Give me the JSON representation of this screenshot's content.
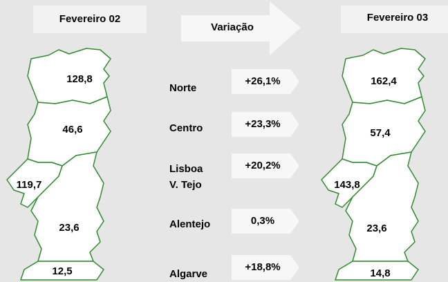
{
  "left_map": {
    "title": "Fevereiro 02",
    "values": [
      "128,8",
      "46,6",
      "119,7",
      "23,6",
      "12,5"
    ]
  },
  "center": {
    "title": "Variação",
    "rows": [
      {
        "region": [
          "Norte"
        ],
        "change": "+26,1%"
      },
      {
        "region": [
          "Centro"
        ],
        "change": "+23,3%"
      },
      {
        "region": [
          "Lisboa",
          "V. Tejo"
        ],
        "change": "+20,2%"
      },
      {
        "region": [
          "Alentejo"
        ],
        "change": "0,3%"
      },
      {
        "region": [
          "Algarve"
        ],
        "change": "+18,8%"
      }
    ]
  },
  "right_map": {
    "title": "Fevereiro 03",
    "values": [
      "162,4",
      "57,4",
      "143,8",
      "23,6",
      "14,8"
    ]
  }
}
